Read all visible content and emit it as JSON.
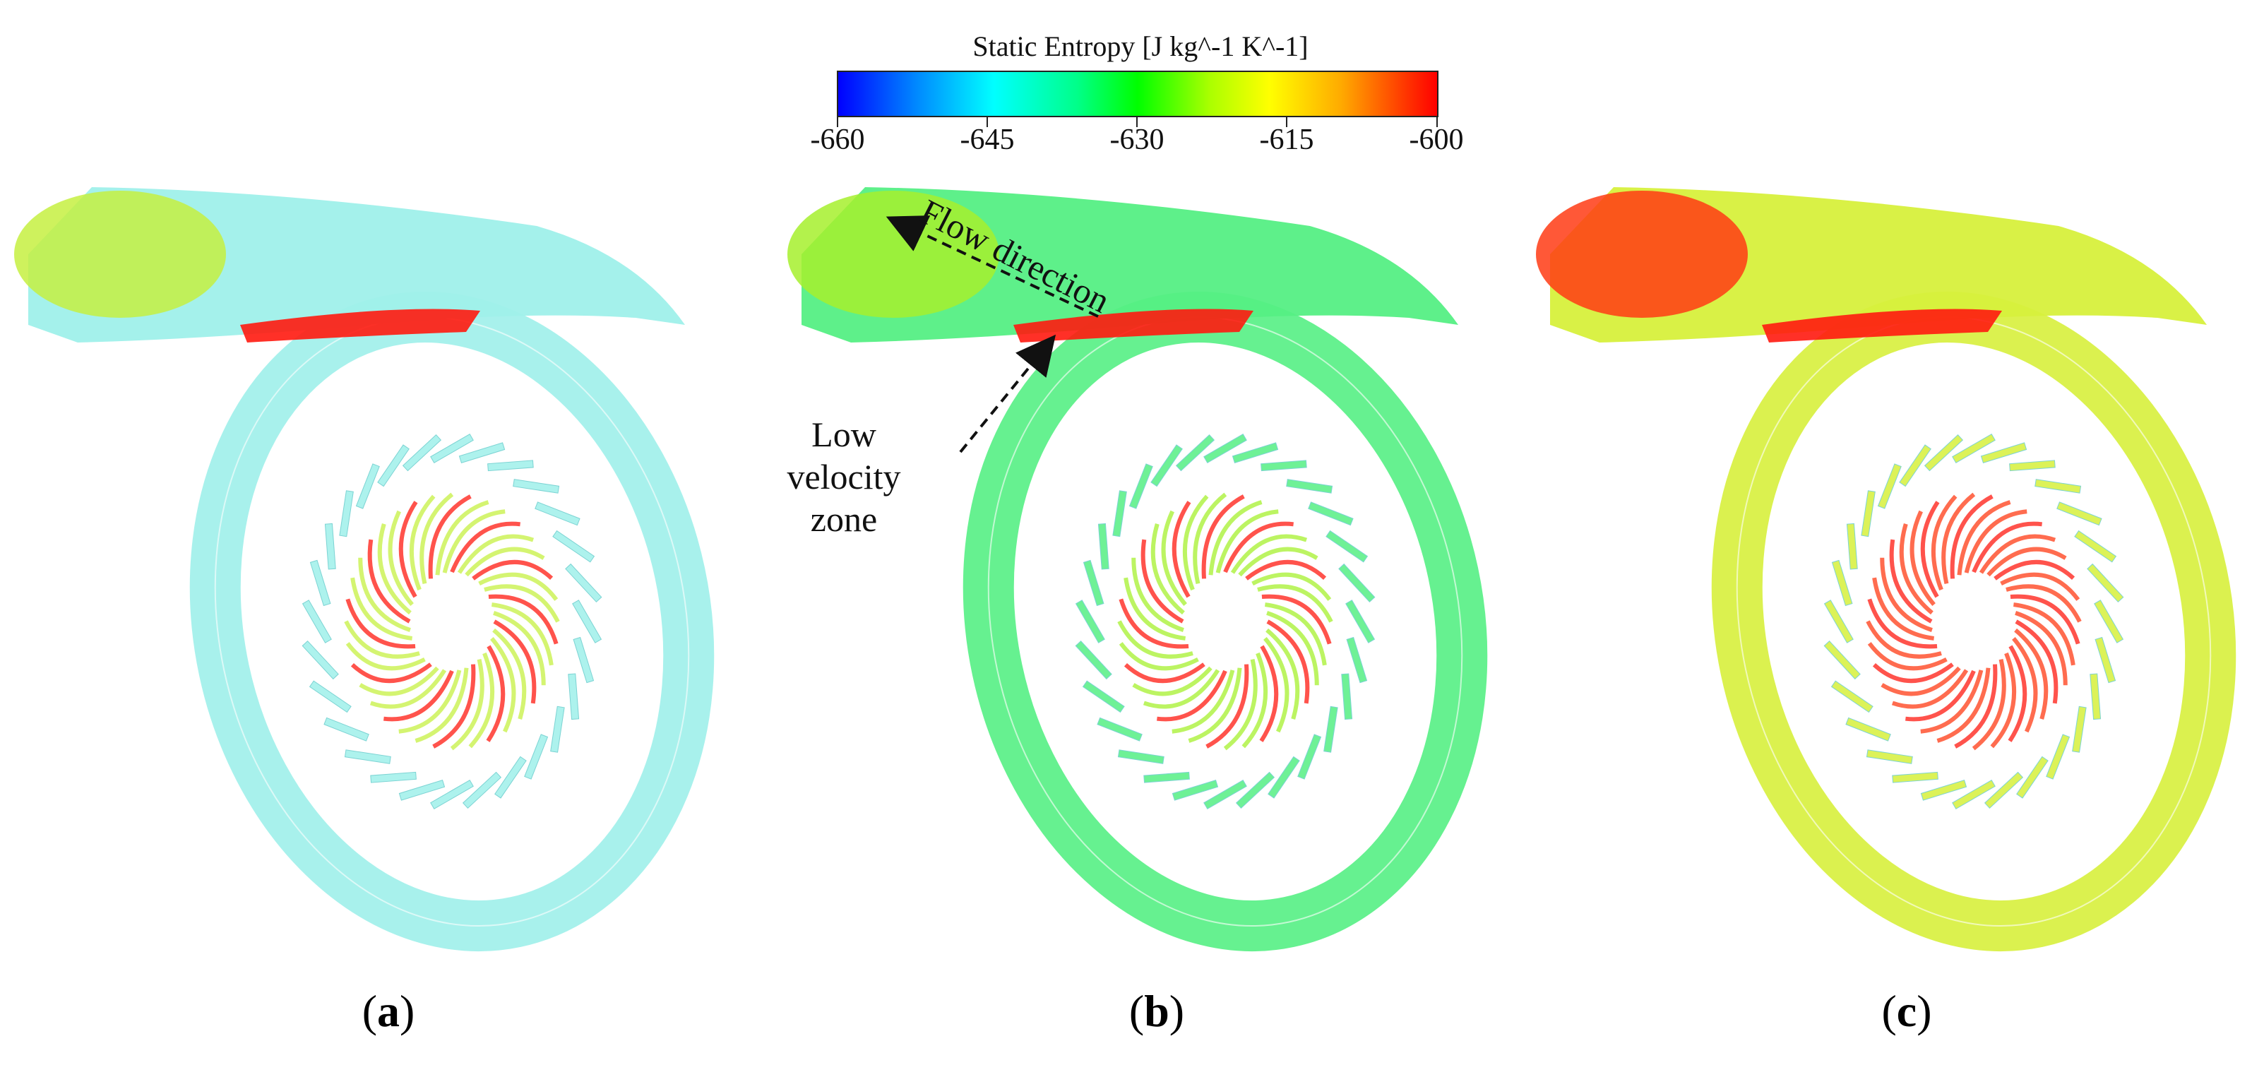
{
  "figure": {
    "colorbar": {
      "title": "Static Entropy [J kg^-1 K^-1]",
      "ticks": [
        "-660",
        "-645",
        "-630",
        "-615",
        "-600"
      ],
      "range": [
        -660,
        -600
      ],
      "colors": [
        "#0000ff",
        "#00ffff",
        "#00ff00",
        "#ffff00",
        "#ff0000"
      ]
    },
    "panels": [
      {
        "label": "a",
        "volute_color": "#9ff0ea",
        "inlet_color": "#c6f041",
        "hot_color": "#ff1a10"
      },
      {
        "label": "b",
        "volute_color": "#55ef84",
        "inlet_color": "#a6f02d",
        "hot_color": "#ff1a10"
      },
      {
        "label": "c",
        "volute_color": "#d7f03c",
        "inlet_color": "#ff3b14",
        "hot_color": "#ff1a10"
      }
    ],
    "annotations": {
      "flow_direction": "Flow direction",
      "low_velocity": [
        "Low",
        "velocity",
        "zone"
      ]
    }
  }
}
